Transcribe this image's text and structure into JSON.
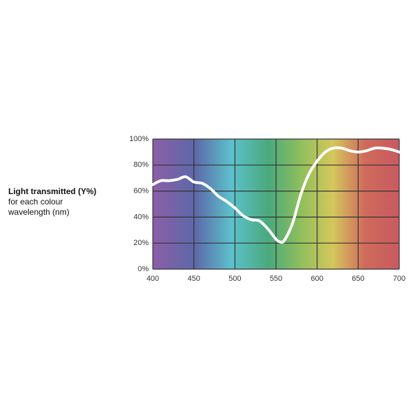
{
  "chart_data": {
    "type": "line",
    "title": "Light transmitted (Y%)",
    "subtitle": [
      "for each colour",
      "wavelength (nm)"
    ],
    "x": [
      400,
      410,
      420,
      430,
      440,
      450,
      460,
      470,
      480,
      490,
      500,
      510,
      520,
      530,
      540,
      550,
      555,
      560,
      570,
      580,
      590,
      600,
      610,
      620,
      630,
      640,
      650,
      660,
      670,
      680,
      690,
      700
    ],
    "series": [
      {
        "color": "#ffffff",
        "values": [
          65,
          68,
          68,
          69,
          71,
          67,
          66,
          62,
          56,
          52,
          47,
          41,
          38,
          37,
          31,
          23,
          21,
          22,
          35,
          57,
          73,
          83,
          90,
          93,
          93,
          91,
          90,
          91,
          93,
          93,
          92,
          90
        ]
      }
    ],
    "xlim": [
      400,
      700
    ],
    "xticks": [
      400,
      450,
      500,
      550,
      600,
      650,
      700
    ],
    "ylim": [
      0,
      100
    ],
    "yticks": [
      {
        "value": 0,
        "label": "0%"
      },
      {
        "value": 20,
        "label": "20%"
      },
      {
        "value": 40,
        "label": "40%"
      },
      {
        "value": 60,
        "label": "60%"
      },
      {
        "value": 80,
        "label": "80%"
      },
      {
        "value": 100,
        "label": "100%"
      }
    ],
    "grid": true
  }
}
